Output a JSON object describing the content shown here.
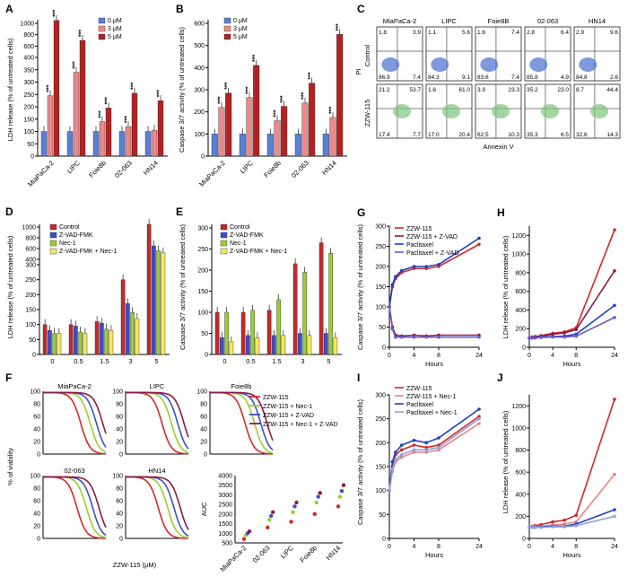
{
  "panel_letters": [
    "A",
    "B",
    "C",
    "D",
    "E",
    "F",
    "G",
    "H",
    "I",
    "J"
  ],
  "cell_lines": [
    "MiaPaCa-2",
    "LIPC",
    "Foie8b",
    "02-063",
    "HN14"
  ],
  "colors": {
    "c0": "#5a7fd6",
    "c3": "#e88a8a",
    "c5": "#b22222",
    "ctrl": "#c0292b",
    "zvad": "#3b4fc8",
    "nec": "#9acd32",
    "zn": "#f5e663",
    "zzw": "#d62728",
    "zzwz": "#8b1a4a",
    "pac": "#1f3fbf",
    "pacz": "#6a5acd",
    "zzwn": "#f08080",
    "pacn": "#8da0e0"
  },
  "chart_data": [
    {
      "panel": "A",
      "type": "bar",
      "ylabel": "LDH release (% of untreated cells)",
      "categories": [
        "MiaPaCa-2",
        "LIPC",
        "Foie8b",
        "02-063",
        "HN14"
      ],
      "yticks": [
        0,
        50,
        100,
        150,
        200,
        250,
        300,
        350,
        400,
        600,
        800,
        1000
      ],
      "legend": [
        "0 μM",
        "3 μM",
        "5 μM"
      ],
      "series": [
        {
          "name": "0 μM",
          "values": [
            100,
            100,
            100,
            100,
            100
          ]
        },
        {
          "name": "3 μM",
          "values": [
            245,
            340,
            140,
            120,
            105
          ]
        },
        {
          "name": "5 μM",
          "values": [
            1050,
            700,
            195,
            255,
            225
          ]
        }
      ],
      "stars": [
        "***",
        "***",
        "***",
        "***",
        "***",
        "***",
        "***"
      ]
    },
    {
      "panel": "B",
      "type": "bar",
      "ylabel": "Caspase 3/7 activity (% of untreated cells)",
      "categories": [
        "MiaPaCa-2",
        "LIPC",
        "Foie8b",
        "02-063",
        "HN14"
      ],
      "yticks": [
        0,
        100,
        200,
        300,
        400,
        500,
        600
      ],
      "legend": [
        "0 μM",
        "3 μM",
        "5 μM"
      ],
      "series": [
        {
          "name": "0 μM",
          "values": [
            100,
            100,
            100,
            100,
            100
          ]
        },
        {
          "name": "3 μM",
          "values": [
            220,
            265,
            160,
            240,
            175
          ]
        },
        {
          "name": "5 μM",
          "values": [
            285,
            410,
            225,
            330,
            550
          ]
        }
      ],
      "stars": [
        "***",
        "***",
        "***",
        "***",
        "*",
        "***",
        "***",
        "***",
        "***",
        "***"
      ]
    },
    {
      "panel": "C",
      "type": "table",
      "xlabel": "Annexin V",
      "ylabel": "PI",
      "rows": [
        "Control",
        "ZZW-115"
      ],
      "columns": [
        "MiaPaCa-2",
        "LIPC",
        "Foie8B",
        "02-063",
        "HN14"
      ],
      "quadrants": [
        [
          [
            "1.8",
            "3.9",
            "86.9",
            "7.4"
          ],
          [
            "1.1",
            "5.6",
            "84.3",
            "9.1"
          ],
          [
            "1.6",
            "7.4",
            "83.6",
            "7.4"
          ],
          [
            "2.8",
            "6.4",
            "85.8",
            "4.9"
          ],
          [
            "2.9",
            "9.6",
            "84.8",
            "2.6"
          ]
        ],
        [
          [
            "21.2",
            "53.7",
            "17.4",
            "7.7"
          ],
          [
            "1.6",
            "61.0",
            "17.0",
            "20.4"
          ],
          [
            "3.9",
            "23.3",
            "62.5",
            "10.3"
          ],
          [
            "35.2",
            "23.0",
            "35.3",
            "6.5"
          ],
          [
            "8.7",
            "44.4",
            "32.6",
            "14.3"
          ]
        ]
      ]
    },
    {
      "panel": "D",
      "type": "bar",
      "ylabel": "LDH release (% of untreated cells)",
      "categories": [
        "0",
        "0.5",
        "1.5",
        "3",
        "5"
      ],
      "yticks": [
        0,
        50,
        100,
        150,
        200,
        250,
        300,
        400,
        600,
        800,
        1000
      ],
      "legend": [
        "Control",
        "Z-VAD-FMK",
        "Nec-1",
        "Z-VAD-FMK + Nec-1"
      ],
      "series": [
        {
          "name": "Control",
          "values": [
            100,
            100,
            110,
            250,
            1050
          ]
        },
        {
          "name": "Z-VAD-FMK",
          "values": [
            80,
            95,
            105,
            170,
            650
          ]
        },
        {
          "name": "Nec-1",
          "values": [
            70,
            75,
            85,
            140,
            560
          ]
        },
        {
          "name": "Z-VAD-FMK + Nec-1",
          "values": [
            70,
            70,
            80,
            120,
            520
          ]
        }
      ]
    },
    {
      "panel": "E",
      "type": "bar",
      "ylabel": "Caspase 3/7 activity (% of untreated cells)",
      "categories": [
        "0",
        "0.5",
        "1.5",
        "3",
        "5"
      ],
      "yticks": [
        0,
        50,
        100,
        150,
        200,
        250,
        300
      ],
      "legend": [
        "Control",
        "Z-VAD-FMK",
        "Nec-1",
        "Z-VAD-FMK + Nec-1"
      ],
      "series": [
        {
          "name": "Control",
          "values": [
            100,
            100,
            105,
            215,
            265
          ]
        },
        {
          "name": "Z-VAD-FMK",
          "values": [
            40,
            45,
            45,
            50,
            50
          ]
        },
        {
          "name": "Nec-1",
          "values": [
            100,
            105,
            130,
            195,
            240
          ]
        },
        {
          "name": "Z-VAD-FMK + Nec-1",
          "values": [
            30,
            40,
            45,
            45,
            40
          ]
        }
      ]
    },
    {
      "panel": "F",
      "type": "line",
      "ylabel": "% of viability",
      "xlabel": "ZZW-115 (μM)",
      "titles": [
        "MiaPaCa-2",
        "LIPC",
        "Foie8b",
        "02-063",
        "HN14"
      ],
      "legend": [
        "ZZW-115",
        "ZZW-115 + Nec-1",
        "ZZW-115 + Z-VAD",
        "ZZW-115 + Nec-1 + Z-VAD"
      ],
      "auc": {
        "ylabel": "AUC",
        "categories": [
          "MiaPaCa-2",
          "02-063",
          "LIPC",
          "Foie8b",
          "HN14"
        ],
        "yticks": [
          500,
          1000,
          1500,
          2000,
          2500,
          3000,
          3500,
          4000
        ]
      }
    },
    {
      "panel": "G",
      "type": "line",
      "ylabel": "Caspase 3/7 activity (% of untreated cells)",
      "xlabel": "Hours",
      "x": [
        0,
        0.5,
        1,
        2,
        4,
        6,
        8,
        24
      ],
      "yticks": [
        0,
        50,
        100,
        150,
        200,
        250,
        300
      ],
      "legend": [
        "ZZW-115",
        "ZZW-115 + Z-VAD",
        "Paclitaxel",
        "Paclitaxel + Z-VAD"
      ],
      "series": [
        {
          "name": "ZZW-115",
          "values": [
            100,
            150,
            170,
            185,
            195,
            195,
            200,
            255
          ]
        },
        {
          "name": "ZZW-115 + Z-VAD",
          "values": [
            100,
            50,
            30,
            28,
            30,
            28,
            30,
            30
          ]
        },
        {
          "name": "Paclitaxel",
          "values": [
            100,
            155,
            175,
            190,
            200,
            200,
            205,
            270
          ]
        },
        {
          "name": "Paclitaxel + Z-VAD",
          "values": [
            100,
            45,
            25,
            25,
            25,
            25,
            25,
            25
          ]
        }
      ]
    },
    {
      "panel": "H",
      "type": "line",
      "ylabel": "LDH release (% of untreated cells)",
      "xlabel": "Hours",
      "x": [
        0,
        0.5,
        1,
        2,
        4,
        6,
        8,
        24
      ],
      "yticks": [
        0,
        200,
        400,
        600,
        800,
        1000,
        1200
      ],
      "series": [
        {
          "name": "ZZW-115",
          "values": [
            100,
            110,
            115,
            125,
            150,
            165,
            210,
            1260
          ]
        },
        {
          "name": "ZZW-115 + Z-VAD",
          "values": [
            100,
            105,
            110,
            120,
            140,
            155,
            190,
            820
          ]
        },
        {
          "name": "Paclitaxel",
          "values": [
            100,
            100,
            105,
            110,
            115,
            120,
            140,
            450
          ]
        },
        {
          "name": "Paclitaxel + Z-VAD",
          "values": [
            100,
            100,
            100,
            105,
            110,
            110,
            120,
            320
          ]
        }
      ]
    },
    {
      "panel": "I",
      "type": "line",
      "ylabel": "Caspase 3/7 activity (% of untreated cells)",
      "xlabel": "Hours",
      "x": [
        0,
        0.5,
        1,
        2,
        4,
        6,
        8,
        24
      ],
      "yticks": [
        0,
        50,
        100,
        150,
        200,
        250,
        300
      ],
      "legend": [
        "ZZW-115",
        "ZZW-115 + Nec-1",
        "Paclitaxel",
        "Paclitaxel + Nec-1"
      ],
      "series": [
        {
          "name": "ZZW-115",
          "values": [
            100,
            150,
            175,
            185,
            195,
            190,
            195,
            255
          ]
        },
        {
          "name": "ZZW-115 + Nec-1",
          "values": [
            100,
            140,
            160,
            170,
            180,
            180,
            185,
            240
          ]
        },
        {
          "name": "Paclitaxel",
          "values": [
            100,
            160,
            180,
            195,
            205,
            200,
            210,
            270
          ]
        },
        {
          "name": "Paclitaxel + Nec-1",
          "values": [
            100,
            145,
            165,
            175,
            185,
            185,
            190,
            250
          ]
        }
      ]
    },
    {
      "panel": "J",
      "type": "line",
      "ylabel": "LDH release (% of untreated cells)",
      "xlabel": "Hours",
      "x": [
        0,
        0.5,
        1,
        2,
        4,
        6,
        8,
        24
      ],
      "yticks": [
        0,
        200,
        400,
        600,
        800,
        1000,
        1200
      ],
      "series": [
        {
          "name": "ZZW-115",
          "values": [
            100,
            110,
            115,
            125,
            150,
            165,
            210,
            1260
          ]
        },
        {
          "name": "ZZW-115 + Nec-1",
          "values": [
            100,
            105,
            105,
            110,
            120,
            130,
            150,
            580
          ]
        },
        {
          "name": "Paclitaxel",
          "values": [
            100,
            100,
            100,
            105,
            110,
            110,
            130,
            260
          ]
        },
        {
          "name": "Paclitaxel + Nec-1",
          "values": [
            100,
            100,
            100,
            100,
            105,
            105,
            115,
            200
          ]
        }
      ]
    }
  ]
}
